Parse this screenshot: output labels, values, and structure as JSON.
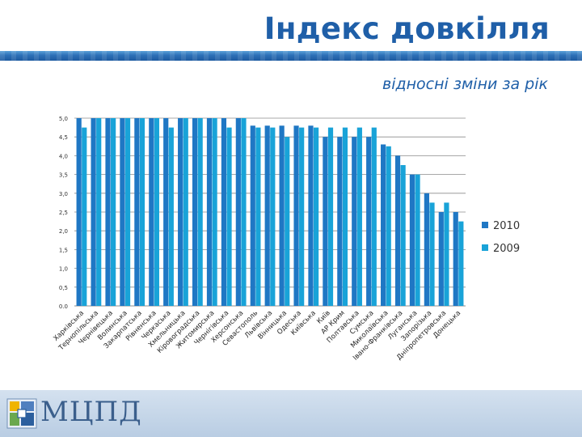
{
  "slide": {
    "title": "Індекс довкілля",
    "subtitle": "відносні зміни за рік",
    "logo_text": "МЦПД"
  },
  "colors": {
    "series_2010": "#1f77c4",
    "series_2009": "#19a3d8",
    "title": "#1f5fa8",
    "gridline": "#8c8c8c"
  },
  "chart_data": {
    "type": "bar",
    "title": "",
    "xlabel": "",
    "ylabel": "",
    "ylim": [
      0,
      5
    ],
    "yticks": [
      "0.0",
      "0,5",
      "1,0",
      "1,5",
      "2,0",
      "2,5",
      "3,0",
      "3,5",
      "4,0",
      "4,5",
      "5,0"
    ],
    "grid": true,
    "legend_position": "right",
    "categories": [
      "Харківська",
      "Тернопільська",
      "Чернівецька",
      "Волинська",
      "Закарпатська",
      "Рівненська",
      "Черкаська",
      "Хмельницька",
      "Кіровоградська",
      "Житомирська",
      "Чернігівська",
      "Херсонська",
      "Севастополь",
      "Львівська",
      "Вінницька",
      "Одеська",
      "Київська",
      "Київ",
      "АР Крим",
      "Полтавська",
      "Сумська",
      "Миколаївська",
      "Івано-Франківська",
      "Луганська",
      "Запорізька",
      "Дніпропетровська",
      "Донецька"
    ],
    "series": [
      {
        "name": "2010",
        "values": [
          5.0,
          5.0,
          5.0,
          5.0,
          5.0,
          5.0,
          5.0,
          5.0,
          5.0,
          5.0,
          5.0,
          5.0,
          4.8,
          4.8,
          4.8,
          4.8,
          4.8,
          4.5,
          4.5,
          4.5,
          4.5,
          4.3,
          4.0,
          3.5,
          3.0,
          2.5,
          2.5
        ]
      },
      {
        "name": "2009",
        "values": [
          4.75,
          5.0,
          5.0,
          5.0,
          5.0,
          5.0,
          4.75,
          5.0,
          5.0,
          5.0,
          4.75,
          5.0,
          4.75,
          4.75,
          4.5,
          4.75,
          4.75,
          4.75,
          4.75,
          4.75,
          4.75,
          4.25,
          3.75,
          3.5,
          2.75,
          2.75,
          2.25
        ]
      }
    ]
  }
}
